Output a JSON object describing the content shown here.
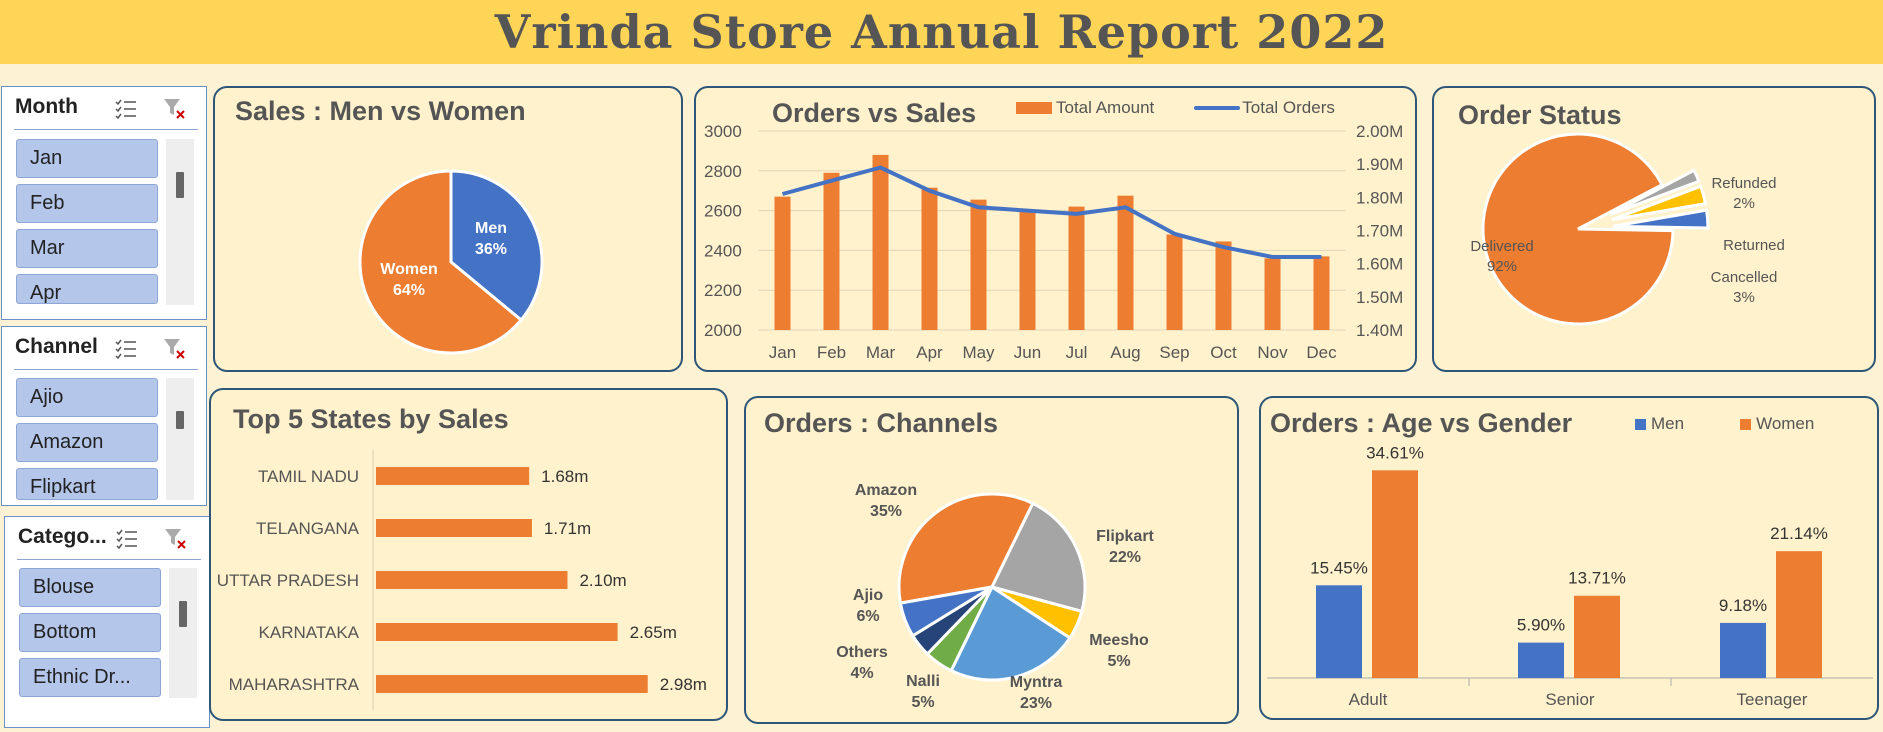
{
  "report": {
    "title": "Vrinda Store Annual Report 2022"
  },
  "slicers": {
    "month": {
      "title": "Month",
      "items": [
        "Jan",
        "Feb",
        "Mar",
        "Apr"
      ]
    },
    "channel": {
      "title": "Channel",
      "items": [
        "Ajio",
        "Amazon",
        "Flipkart"
      ]
    },
    "category": {
      "title": "Catego...",
      "items": [
        "Blouse",
        "Bottom",
        "Ethnic Dr..."
      ]
    }
  },
  "colors": {
    "orange": "#ed7d31",
    "blue": "#4472c4",
    "gray": "#a5a5a5",
    "yellow": "#ffc000",
    "lightblue": "#5b9bd5",
    "green": "#70ad47",
    "navy": "#264478"
  },
  "chart_data": [
    {
      "id": "sales-men-women",
      "type": "pie",
      "title": "Sales : Men vs Women",
      "slices": [
        {
          "label": "Men",
          "value": 36,
          "display": "36%",
          "color": "#4472c4"
        },
        {
          "label": "Women",
          "value": 64,
          "display": "64%",
          "color": "#ed7d31"
        }
      ]
    },
    {
      "id": "orders-vs-sales",
      "type": "bar",
      "title": "Orders vs Sales",
      "categories": [
        "Jan",
        "Feb",
        "Mar",
        "Apr",
        "May",
        "Jun",
        "Jul",
        "Aug",
        "Sep",
        "Oct",
        "Nov",
        "Dec"
      ],
      "series": [
        {
          "name": "Total Amount",
          "kind": "bar",
          "axis": "left",
          "values": [
            2670,
            2790,
            2880,
            2715,
            2655,
            2595,
            2620,
            2675,
            2480,
            2445,
            2360,
            2370
          ],
          "color": "#ed7d31"
        },
        {
          "name": "Total Orders",
          "kind": "line",
          "axis": "right",
          "values": [
            1.81,
            1.85,
            1.89,
            1.82,
            1.77,
            1.76,
            1.75,
            1.77,
            1.69,
            1.65,
            1.62,
            1.62
          ],
          "color": "#4472c4"
        }
      ],
      "ylim": [
        2000,
        3000
      ],
      "yticks": [
        "2000",
        "2200",
        "2400",
        "2600",
        "2800",
        "3000"
      ],
      "y2lim": [
        1.4,
        2.0
      ],
      "y2ticks": [
        "1.40M",
        "1.50M",
        "1.60M",
        "1.70M",
        "1.80M",
        "1.90M",
        "2.00M"
      ],
      "legend": "top"
    },
    {
      "id": "order-status",
      "type": "pie",
      "title": "Order Status",
      "slices": [
        {
          "label": "Delivered",
          "value": 92,
          "display": "92%",
          "color": "#ed7d31"
        },
        {
          "label": "Refunded",
          "value": 2,
          "display": "2%",
          "color": "#a5a5a5"
        },
        {
          "label": "Returned",
          "value": 3,
          "display": "",
          "color": "#ffc000"
        },
        {
          "label": "Cancelled",
          "value": 3,
          "display": "3%",
          "color": "#4472c4"
        }
      ]
    },
    {
      "id": "top-states",
      "type": "bar",
      "orientation": "horizontal",
      "title": "Top 5 States by Sales",
      "categories": [
        "TAMIL NADU",
        "TELANGANA",
        "UTTAR PRADESH",
        "KARNATAKA",
        "MAHARASHTRA"
      ],
      "values": [
        1.68,
        1.71,
        2.1,
        2.65,
        2.98
      ],
      "labels": [
        "1.68m",
        "1.71m",
        "2.10m",
        "2.65m",
        "2.98m"
      ],
      "xlim": [
        0,
        3.4
      ]
    },
    {
      "id": "orders-channels",
      "type": "pie",
      "title": "Orders : Channels",
      "slices": [
        {
          "label": "Amazon",
          "value": 35,
          "display": "35%",
          "color": "#ed7d31"
        },
        {
          "label": "Flipkart",
          "value": 22,
          "display": "22%",
          "color": "#a5a5a5"
        },
        {
          "label": "Meesho",
          "value": 5,
          "display": "5%",
          "color": "#ffc000"
        },
        {
          "label": "Myntra",
          "value": 23,
          "display": "23%",
          "color": "#5b9bd5"
        },
        {
          "label": "Nalli",
          "value": 5,
          "display": "5%",
          "color": "#70ad47"
        },
        {
          "label": "Others",
          "value": 4,
          "display": "4%",
          "color": "#264478"
        },
        {
          "label": "Ajio",
          "value": 6,
          "display": "6%",
          "color": "#4472c4"
        }
      ]
    },
    {
      "id": "age-gender",
      "type": "bar",
      "title": "Orders : Age vs Gender",
      "categories": [
        "Adult",
        "Senior",
        "Teenager"
      ],
      "series": [
        {
          "name": "Men",
          "values": [
            15.45,
            5.9,
            9.18
          ],
          "labels": [
            "15.45%",
            "5.90%",
            "9.18%"
          ],
          "color": "#4472c4"
        },
        {
          "name": "Women",
          "values": [
            34.61,
            13.71,
            21.14
          ],
          "labels": [
            "34.61%",
            "13.71%",
            "21.14%"
          ],
          "color": "#ed7d31"
        }
      ],
      "ylim": [
        0,
        40
      ],
      "legend": "top-right"
    }
  ]
}
